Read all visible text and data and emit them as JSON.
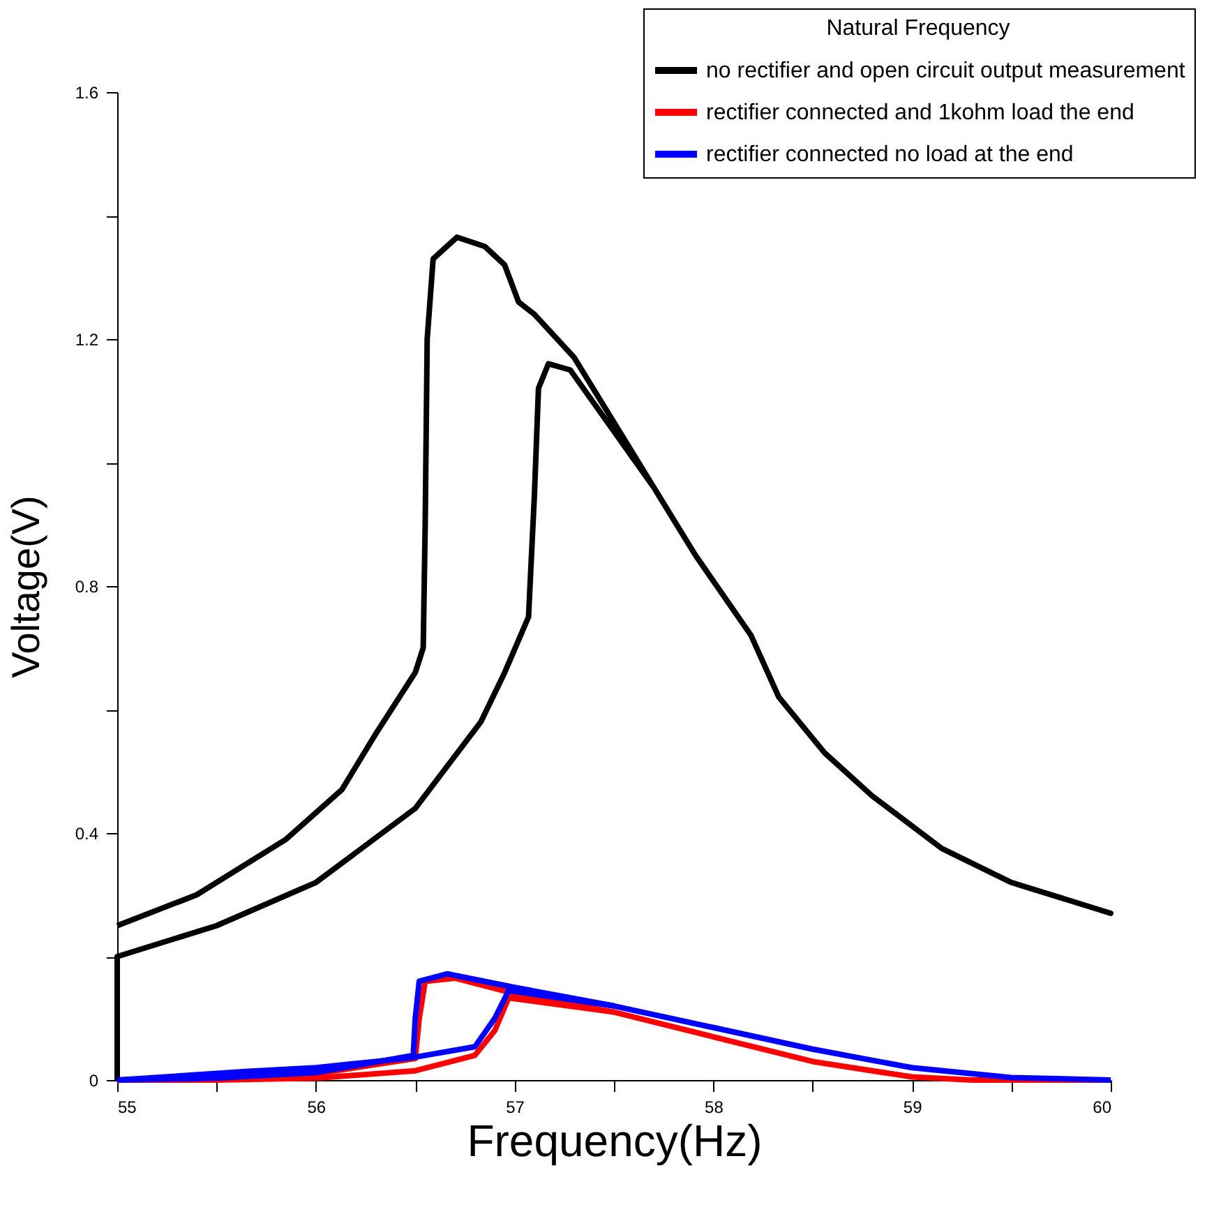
{
  "chart_data": {
    "type": "line",
    "xlabel": "Frequency(Hz)",
    "ylabel": "Voltage(V)",
    "legend_title": "Natural Frequency",
    "xlim": [
      55,
      60
    ],
    "ylim": [
      0,
      1.6
    ],
    "xticks": [
      55,
      {
        "value": 55.5,
        "label": null
      },
      56,
      {
        "value": 56.5,
        "label": null
      },
      57,
      {
        "value": 57.5,
        "label": null
      },
      58,
      {
        "value": 58.5,
        "label": null
      },
      59,
      {
        "value": 59.5,
        "label": null
      },
      60
    ],
    "yticks": [
      0,
      {
        "value": 0.2,
        "label": null
      },
      0.4,
      {
        "value": 0.6,
        "label": null
      },
      0.8,
      {
        "value": 1.0,
        "label": null
      },
      1.2,
      {
        "value": 1.4,
        "label": null
      },
      1.6
    ],
    "grid": false,
    "legend": "top right",
    "marker": "none",
    "line_style": "solid",
    "series": [
      {
        "name": "no rectifier and open circuit output measurement",
        "color": "#000000",
        "x": [
          55,
          55,
          55.5,
          56,
          56.5,
          56.83,
          56.95,
          57.07,
          57.1,
          57.12,
          57.17,
          57.28,
          57.7,
          57.91,
          58.19,
          58.33,
          58.56,
          58.8,
          59.15,
          59.5,
          60,
          59.5,
          59.15,
          58.8,
          58.56,
          58.33,
          58.19,
          57.91,
          57.7,
          57.3,
          57.1,
          57.02,
          56.95,
          56.85,
          56.71,
          56.59,
          56.56,
          56.55,
          56.54,
          56.5,
          56.3,
          56.13,
          55.85,
          55.4,
          55
        ],
        "values": [
          0,
          0.2,
          0.25,
          0.32,
          0.44,
          0.58,
          0.66,
          0.75,
          0.95,
          1.12,
          1.16,
          1.15,
          0.96,
          0.85,
          0.72,
          0.62,
          0.53,
          0.46,
          0.375,
          0.32,
          0.27,
          0.32,
          0.375,
          0.46,
          0.53,
          0.62,
          0.72,
          0.85,
          0.96,
          1.17,
          1.24,
          1.26,
          1.32,
          1.35,
          1.365,
          1.33,
          1.2,
          0.9,
          0.7,
          0.66,
          0.56,
          0.47,
          0.39,
          0.3,
          0.25
        ]
      },
      {
        "name": "rectifier connected and 1kohm load the end",
        "color": "#ff0000",
        "x": [
          55,
          55.5,
          56,
          56.5,
          56.8,
          56.9,
          56.97,
          57.5,
          58,
          58.5,
          59,
          59.3,
          60
        ],
        "values": [
          0,
          0,
          0.003,
          0.015,
          0.04,
          0.08,
          0.133,
          0.11,
          0.07,
          0.03,
          0.005,
          0,
          0
        ]
      },
      {
        "color": "#ff0000",
        "x": [
          57.5,
          57,
          56.7,
          56.55,
          56.52,
          56.5,
          56,
          55.5,
          55
        ],
        "values": [
          0.11,
          0.14,
          0.165,
          0.16,
          0.1,
          0.035,
          0.01,
          0.002,
          0
        ]
      },
      {
        "name": "rectifier connected no load at the end",
        "color": "#0000ff",
        "x": [
          55,
          55.66,
          56,
          56.48,
          56.8,
          56.9,
          56.97,
          57.5,
          58,
          58.5,
          59,
          59.5,
          60
        ],
        "values": [
          0,
          0.014,
          0.02,
          0.036,
          0.054,
          0.1,
          0.145,
          0.12,
          0.085,
          0.05,
          0.02,
          0.004,
          0
        ]
      },
      {
        "color": "#0000ff",
        "x": [
          57.5,
          57,
          56.66,
          56.52,
          56.5,
          56.49,
          56,
          55.5,
          55
        ],
        "values": [
          0.12,
          0.15,
          0.172,
          0.16,
          0.1,
          0.04,
          0.012,
          0.003,
          0
        ]
      }
    ]
  }
}
